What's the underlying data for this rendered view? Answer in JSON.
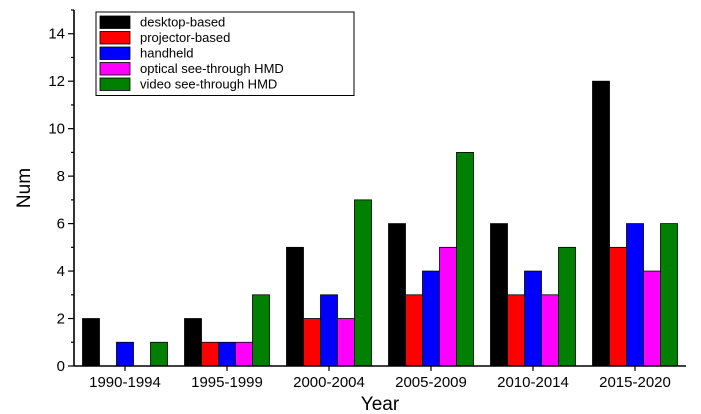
{
  "chart_data": {
    "type": "bar",
    "title": "",
    "xlabel": "Year",
    "ylabel": "Num",
    "ylim": [
      0,
      15
    ],
    "yticks": [
      0,
      2,
      4,
      6,
      8,
      10,
      12,
      14
    ],
    "grid": false,
    "legend_position": "top-left",
    "categories": [
      "1990-1994",
      "1995-1999",
      "2000-2004",
      "2005-2009",
      "2010-2014",
      "2015-2020"
    ],
    "series": [
      {
        "name": "desktop-based",
        "color": "#000000",
        "values": [
          2,
          2,
          5,
          6,
          6,
          12
        ]
      },
      {
        "name": "projector-based",
        "color": "#ff0000",
        "values": [
          0,
          1,
          2,
          3,
          3,
          5
        ]
      },
      {
        "name": "handheld",
        "color": "#0000ff",
        "values": [
          1,
          1,
          3,
          4,
          4,
          6
        ]
      },
      {
        "name": "optical see-through HMD",
        "color": "#ff00ff",
        "values": [
          0,
          1,
          2,
          5,
          3,
          4
        ]
      },
      {
        "name": "video see-through HMD",
        "color": "#008000",
        "values": [
          1,
          3,
          7,
          9,
          5,
          6
        ]
      }
    ]
  }
}
